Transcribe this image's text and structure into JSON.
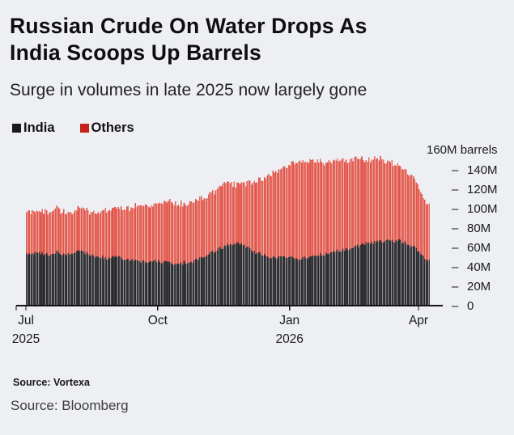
{
  "header": {
    "title_lines": [
      "Russian Crude On Water Drops As",
      "India Scoops Up Barrels"
    ],
    "subtitle": "Surge in volumes in late 2025 now largely gone"
  },
  "legend": [
    {
      "label": "India",
      "swatch_color": "#1a1a1a"
    },
    {
      "label": "Others",
      "swatch_color": "#c4211a"
    }
  ],
  "footer": {
    "source_small": "Source: Vortexa",
    "source_large": "Source: Bloomberg"
  },
  "chart_data": {
    "type": "bar",
    "stacked": true,
    "frequency": "daily",
    "unit": "M barrels",
    "axis_header": "160M barrels",
    "ylim": [
      0,
      160
    ],
    "y_tick_labels": [
      "140M",
      "120M",
      "100M",
      "80M",
      "60M",
      "40M",
      "20M",
      "0"
    ],
    "y_tick_values": [
      140,
      120,
      100,
      80,
      60,
      40,
      20,
      0
    ],
    "x_ticks": [
      {
        "label": "Jul",
        "year": "2025",
        "day_offset": 0
      },
      {
        "label": "Oct",
        "year": "",
        "day_offset": 92
      },
      {
        "label": "Jan",
        "year": "2026",
        "day_offset": 184
      },
      {
        "label": "Apr",
        "year": "",
        "day_offset": 274
      }
    ],
    "x_range": {
      "start": "2025-07-01",
      "end": "2026-04-08",
      "total_days": 282
    },
    "series": [
      {
        "name": "India",
        "color": "#2b2b2e"
      },
      {
        "name": "Others",
        "color": "#e0584d"
      }
    ],
    "anchors": {
      "comment_levels_in_million_barrels": "weekly anchor values read from chart; daily bars interpolate between anchors",
      "day_offsets": [
        0,
        7,
        14,
        21,
        28,
        35,
        42,
        49,
        56,
        63,
        70,
        77,
        84,
        91,
        98,
        105,
        112,
        119,
        126,
        133,
        140,
        147,
        154,
        161,
        168,
        175,
        182,
        189,
        196,
        203,
        210,
        217,
        224,
        231,
        238,
        245,
        252,
        259,
        266,
        273,
        277,
        281
      ],
      "india": [
        53,
        55,
        52,
        55,
        53,
        56,
        54,
        51,
        49,
        50,
        48,
        46,
        45,
        46,
        44,
        43,
        45,
        47,
        52,
        58,
        62,
        65,
        60,
        54,
        51,
        50,
        51,
        48,
        50,
        52,
        54,
        56,
        58,
        61,
        64,
        66,
        67,
        67,
        64,
        57,
        51,
        46
      ],
      "others": [
        43,
        43,
        44,
        45,
        43,
        43,
        44,
        46,
        49,
        49,
        53,
        56,
        58,
        59,
        63,
        62,
        61,
        62,
        61,
        63,
        66,
        60,
        65,
        74,
        83,
        90,
        94,
        100,
        98,
        98,
        94,
        94,
        90,
        91,
        86,
        86,
        81,
        78,
        74,
        68,
        61,
        57
      ]
    }
  }
}
